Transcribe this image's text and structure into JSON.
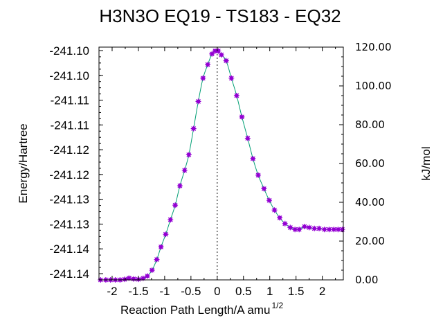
{
  "chart_data": {
    "type": "line",
    "title": "H3N3O   EQ19 - TS183 - EQ32",
    "xlabel": "Reaction Path Length/A amu",
    "xlabel_superscript": "1/2",
    "ylabel": "Energy/Hartree",
    "y2label": "kJ/mol",
    "xlim": [
      -2.25,
      2.4
    ],
    "ylim_kjmol": [
      0,
      120
    ],
    "x_ticks": [
      "-2",
      "-1.5",
      "-1",
      "-0.5",
      "0",
      "0.5",
      "1",
      "1.5",
      "2"
    ],
    "y_left_ticks": [
      "-241.14",
      "-241.14",
      "-241.13",
      "-241.13",
      "-241.12",
      "-241.12",
      "-241.11",
      "-241.11",
      "-241.10",
      "-241.10"
    ],
    "y_right_ticks": [
      "0.00",
      "20.00",
      "40.00",
      "60.00",
      "80.00",
      "100.00",
      "120.00"
    ],
    "ts_marker_x": 0,
    "grid": false,
    "colors": {
      "line": "#009e73",
      "points": "#9400d3"
    },
    "series": [
      {
        "x": [
          -2.22,
          -2.12,
          -2.03,
          -1.94,
          -1.85,
          -1.76,
          -1.68,
          -1.59,
          -1.5,
          -1.41,
          -1.33,
          -1.24,
          -1.15,
          -1.07,
          -0.98,
          -0.89,
          -0.8,
          -0.71,
          -0.62,
          -0.54,
          -0.45,
          -0.36,
          -0.27,
          -0.18,
          -0.1,
          -0.04,
          0.02,
          0.08,
          0.17,
          0.27,
          0.37,
          0.47,
          0.58,
          0.68,
          0.78,
          0.89,
          0.99,
          1.09,
          1.19,
          1.29,
          1.39,
          1.48,
          1.56,
          1.66,
          1.75,
          1.85,
          1.94,
          2.04,
          2.13,
          2.22,
          2.3,
          2.38
        ],
        "y": [
          0.0,
          0.0,
          0.0,
          0.0,
          0.0,
          0.3,
          0.9,
          0.5,
          0.3,
          0.8,
          2.0,
          5.0,
          10.5,
          17.0,
          23.5,
          31.0,
          38.5,
          48.5,
          56.5,
          64.5,
          78.0,
          92.0,
          104.0,
          111.0,
          116.5,
          118.0,
          118.0,
          116.0,
          113.0,
          104.0,
          95.0,
          84.0,
          73.0,
          62.5,
          54.0,
          47.0,
          41.0,
          36.0,
          32.0,
          29.0,
          27.0,
          26.0,
          26.0,
          27.5,
          27.0,
          26.5,
          26.5,
          26.0,
          26.0,
          26.0,
          26.0,
          26.0
        ]
      }
    ]
  }
}
